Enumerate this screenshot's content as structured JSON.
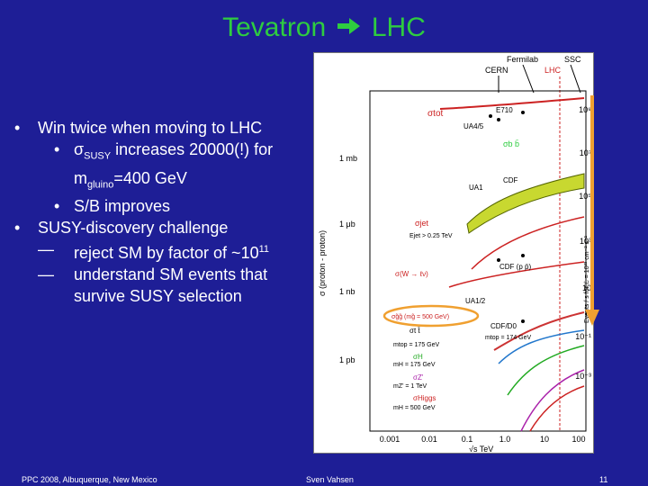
{
  "slide": {
    "title_left": "Tevatron",
    "title_right": "LHC",
    "bullets": {
      "b1": "Win twice when moving to LHC",
      "b1a_pre": "σ",
      "b1a_sub": "SUSY",
      "b1a_mid": " increases 20000(!) for",
      "b1a_line2_pre": "m",
      "b1a_line2_sub": "gluino",
      "b1a_line2_post": "=400 GeV",
      "b1b": "S/B improves",
      "b2": "SUSY-discovery challenge",
      "b2a_pre": "reject SM by factor of ~10",
      "b2a_sup": "11",
      "b2b_line1": "understand SM events that",
      "b2b_line2": "survive SUSY selection",
      "marker_dot": "•",
      "marker_dash": "—"
    },
    "footer": {
      "left": "PPC 2008, Albuquerque, New Mexico",
      "center": "Sven Vahsen",
      "page": "11"
    }
  },
  "figure": {
    "top_labels": {
      "fermilab": "Fermilab",
      "ssc": "SSC",
      "cern": "CERN",
      "lhc": "LHC"
    },
    "left_axis_title": "σ (proton - proton)",
    "left_ticks": [
      "1 mb",
      "1 μb",
      "1 nb",
      "1 pb"
    ],
    "right_axis_title": "Events / s for ℒ = 10³³ cm⁻² s⁻¹",
    "right_ticks": [
      "10⁹",
      "10⁷",
      "10⁵",
      "10³",
      "10",
      "10⁻¹",
      "10⁻³"
    ],
    "x_ticks": [
      "0.001",
      "0.01",
      "0.1",
      "1.0",
      "10",
      "100"
    ],
    "x_label": "√s  TeV",
    "experiments": [
      "E710",
      "UA4/5",
      "CDF",
      "UA1",
      "CDF (p p̄)",
      "UA1/2",
      "CDF/D0"
    ],
    "curve_labels": [
      "σtot",
      "σb b̄",
      "σjet",
      "Ejet > 0.25 TeV",
      "σ(W → ℓν)",
      "σg̃g̃ (mg̃ = 500 GeV)",
      "σt t̄",
      "mtop = 174 GeV",
      "mtop = 175 GeV",
      "σH",
      "mH = 175 GeV",
      "σZ'",
      "mZ' = 1 TeV",
      "σHiggs",
      "mH = 500 GeV"
    ]
  },
  "colors": {
    "background": "#1e1e96",
    "title": "#2ecc40",
    "lhc_line": "#cc2222",
    "highlight": "#f0a030"
  }
}
